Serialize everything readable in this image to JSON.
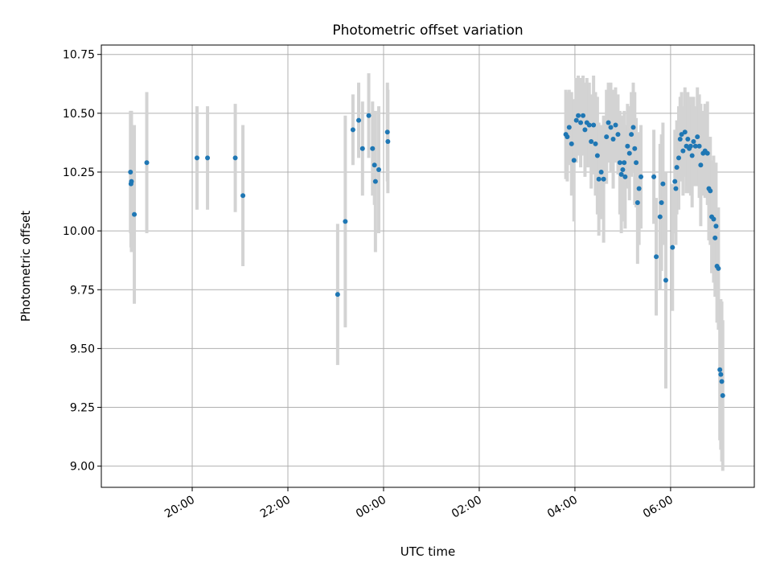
{
  "chart_data": {
    "type": "scatter",
    "title": "Photometric offset variation",
    "xlabel": "UTC time",
    "ylabel": "Photometric offset",
    "x_unit": "hours_since_00:00",
    "xlim": [
      -5.9,
      7.75
    ],
    "ylim": [
      8.91,
      10.79
    ],
    "x_ticks": [
      {
        "value": -4,
        "label": "20:00"
      },
      {
        "value": -2,
        "label": "22:00"
      },
      {
        "value": 0,
        "label": "00:00"
      },
      {
        "value": 2,
        "label": "02:00"
      },
      {
        "value": 4,
        "label": "04:00"
      },
      {
        "value": 6,
        "label": "06:00"
      }
    ],
    "y_ticks": [
      {
        "value": 9.0,
        "label": "9.00"
      },
      {
        "value": 9.25,
        "label": "9.25"
      },
      {
        "value": 9.5,
        "label": "9.50"
      },
      {
        "value": 9.75,
        "label": "9.75"
      },
      {
        "value": 10.0,
        "label": "10.00"
      },
      {
        "value": 10.25,
        "label": "10.25"
      },
      {
        "value": 10.5,
        "label": "10.50"
      },
      {
        "value": 10.75,
        "label": "10.75"
      }
    ],
    "grid": true,
    "colors": {
      "marker": "#1f77b4",
      "errorbar": "#d3d3d3"
    },
    "series": [
      {
        "values": [
          [
            -5.29,
            10.25,
            0.26
          ],
          [
            -5.28,
            10.2,
            0.27
          ],
          [
            -5.27,
            10.21,
            0.3
          ],
          [
            -5.21,
            10.07,
            0.38
          ],
          [
            -4.95,
            10.29,
            0.3
          ],
          [
            -3.9,
            10.31,
            0.22
          ],
          [
            -3.68,
            10.31,
            0.22
          ],
          [
            -3.1,
            10.31,
            0.23
          ],
          [
            -2.94,
            10.15,
            0.3
          ],
          [
            -0.96,
            9.73,
            0.3
          ],
          [
            -0.8,
            10.04,
            0.45
          ],
          [
            -0.64,
            10.43,
            0.15
          ],
          [
            -0.52,
            10.47,
            0.16
          ],
          [
            -0.44,
            10.35,
            0.2
          ],
          [
            -0.31,
            10.49,
            0.18
          ],
          [
            -0.23,
            10.35,
            0.2
          ],
          [
            -0.19,
            10.28,
            0.17
          ],
          [
            -0.17,
            10.21,
            0.3
          ],
          [
            -0.1,
            10.26,
            0.27
          ],
          [
            0.08,
            10.42,
            0.21
          ],
          [
            0.09,
            10.38,
            0.22
          ],
          [
            3.81,
            10.41,
            0.19
          ],
          [
            3.84,
            10.4,
            0.19
          ],
          [
            3.88,
            10.44,
            0.16
          ],
          [
            3.93,
            10.37,
            0.22
          ],
          [
            3.98,
            10.3,
            0.26
          ],
          [
            4.03,
            10.47,
            0.18
          ],
          [
            4.07,
            10.49,
            0.17
          ],
          [
            4.12,
            10.46,
            0.19
          ],
          [
            4.17,
            10.49,
            0.17
          ],
          [
            4.21,
            10.43,
            0.2
          ],
          [
            4.25,
            10.46,
            0.19
          ],
          [
            4.3,
            10.45,
            0.18
          ],
          [
            4.34,
            10.38,
            0.2
          ],
          [
            4.39,
            10.45,
            0.21
          ],
          [
            4.43,
            10.37,
            0.22
          ],
          [
            4.47,
            10.32,
            0.25
          ],
          [
            4.5,
            10.22,
            0.24
          ],
          [
            4.55,
            10.25,
            0.2
          ],
          [
            4.6,
            10.22,
            0.27
          ],
          [
            4.66,
            10.4,
            0.2
          ],
          [
            4.7,
            10.46,
            0.17
          ],
          [
            4.75,
            10.44,
            0.19
          ],
          [
            4.8,
            10.39,
            0.21
          ],
          [
            4.85,
            10.45,
            0.16
          ],
          [
            4.9,
            10.41,
            0.17
          ],
          [
            4.94,
            10.29,
            0.22
          ],
          [
            4.97,
            10.24,
            0.25
          ],
          [
            5.0,
            10.26,
            0.22
          ],
          [
            5.03,
            10.29,
            0.22
          ],
          [
            5.05,
            10.23,
            0.22
          ],
          [
            5.1,
            10.36,
            0.18
          ],
          [
            5.14,
            10.33,
            0.2
          ],
          [
            5.18,
            10.41,
            0.18
          ],
          [
            5.22,
            10.44,
            0.19
          ],
          [
            5.25,
            10.35,
            0.24
          ],
          [
            5.28,
            10.29,
            0.19
          ],
          [
            5.31,
            10.12,
            0.26
          ],
          [
            5.34,
            10.18,
            0.24
          ],
          [
            5.38,
            10.23,
            0.22
          ],
          [
            5.65,
            10.23,
            0.2
          ],
          [
            5.7,
            9.89,
            0.25
          ],
          [
            5.78,
            10.06,
            0.31
          ],
          [
            5.81,
            10.12,
            0.29
          ],
          [
            5.84,
            10.2,
            0.26
          ],
          [
            5.9,
            9.79,
            0.46
          ],
          [
            6.04,
            9.93,
            0.27
          ],
          [
            6.09,
            10.21,
            0.22
          ],
          [
            6.11,
            10.18,
            0.24
          ],
          [
            6.13,
            10.27,
            0.2
          ],
          [
            6.17,
            10.31,
            0.22
          ],
          [
            6.2,
            10.39,
            0.18
          ],
          [
            6.23,
            10.41,
            0.18
          ],
          [
            6.26,
            10.34,
            0.19
          ],
          [
            6.3,
            10.42,
            0.19
          ],
          [
            6.33,
            10.36,
            0.2
          ],
          [
            6.36,
            10.39,
            0.2
          ],
          [
            6.39,
            10.35,
            0.19
          ],
          [
            6.42,
            10.36,
            0.21
          ],
          [
            6.45,
            10.32,
            0.22
          ],
          [
            6.48,
            10.38,
            0.19
          ],
          [
            6.52,
            10.36,
            0.17
          ],
          [
            6.56,
            10.4,
            0.21
          ],
          [
            6.6,
            10.36,
            0.22
          ],
          [
            6.63,
            10.28,
            0.26
          ],
          [
            6.68,
            10.33,
            0.18
          ],
          [
            6.72,
            10.34,
            0.2
          ],
          [
            6.77,
            10.33,
            0.22
          ],
          [
            6.8,
            10.18,
            0.22
          ],
          [
            6.83,
            10.17,
            0.23
          ],
          [
            6.86,
            10.06,
            0.24
          ],
          [
            6.9,
            10.05,
            0.27
          ],
          [
            6.93,
            9.97,
            0.25
          ],
          [
            6.95,
            10.02,
            0.27
          ],
          [
            6.97,
            9.85,
            0.24
          ],
          [
            7.0,
            9.84,
            0.26
          ],
          [
            7.03,
            9.41,
            0.3
          ],
          [
            7.05,
            9.39,
            0.32
          ],
          [
            7.07,
            9.36,
            0.34
          ],
          [
            7.09,
            9.3,
            0.32
          ]
        ]
      }
    ]
  }
}
